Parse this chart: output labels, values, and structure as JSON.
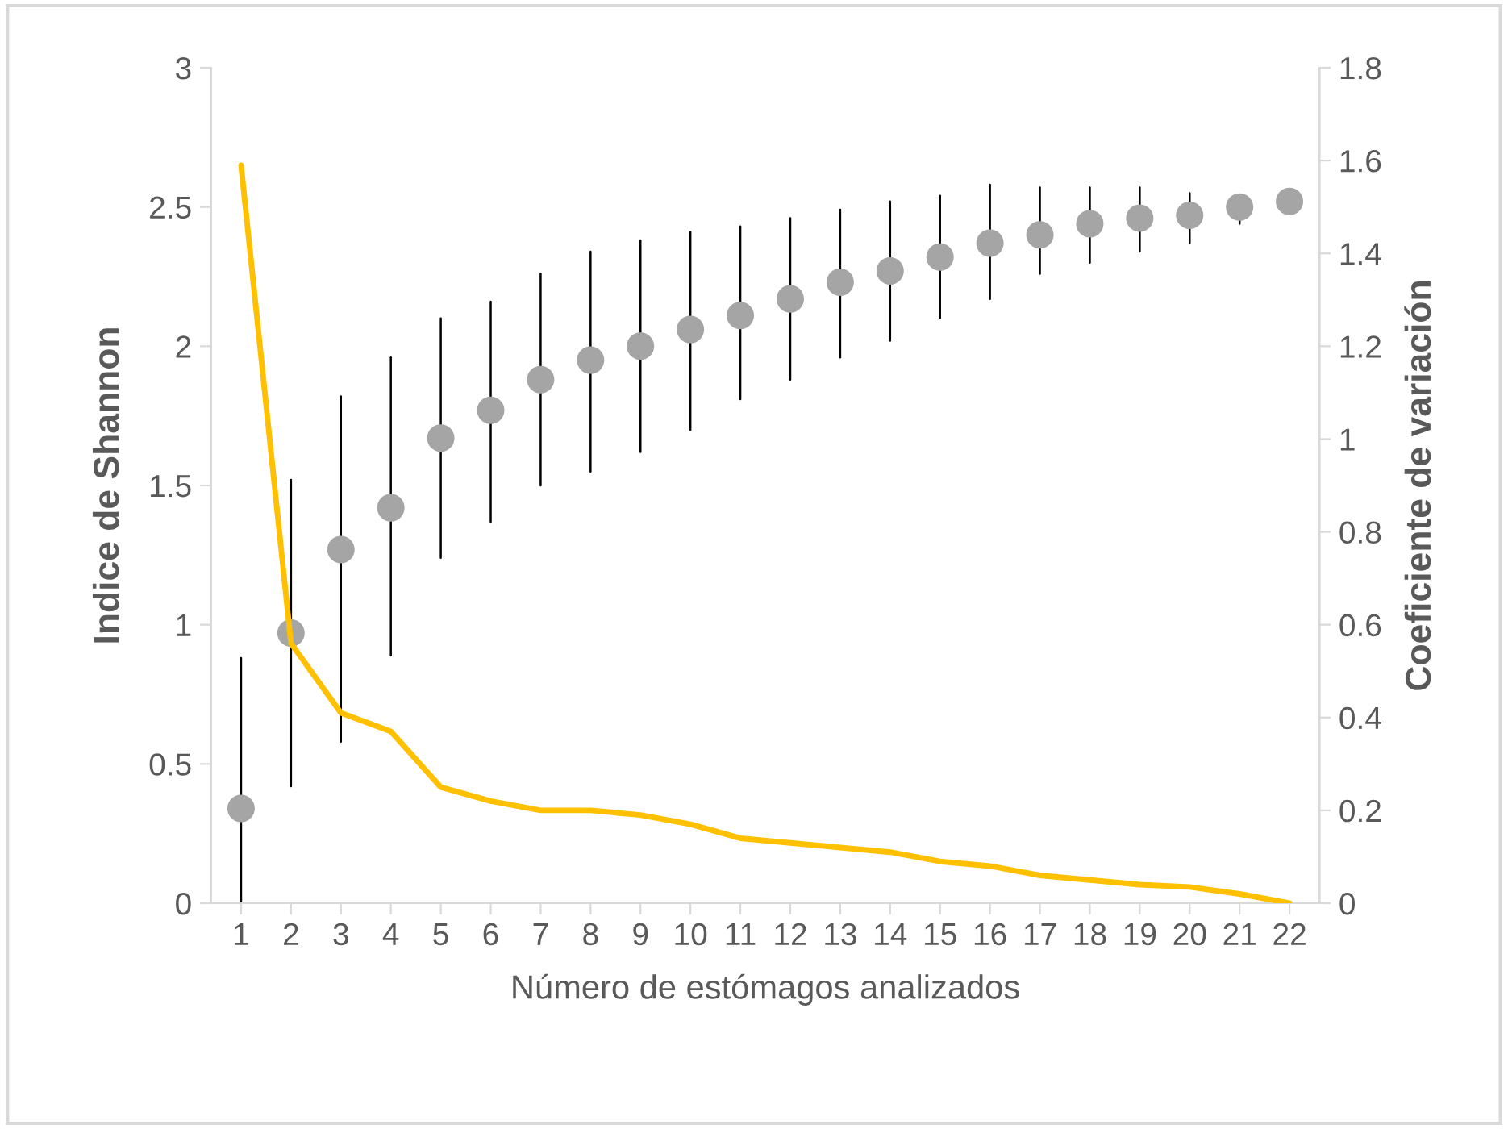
{
  "chart_data": {
    "type": "scatter",
    "xlabel": "Número de estómagos analizados",
    "ylabel": "Indice de Shannon",
    "y2label": "Coeficiente de variación",
    "categories": [
      "1",
      "2",
      "3",
      "4",
      "5",
      "6",
      "7",
      "8",
      "9",
      "10",
      "11",
      "12",
      "13",
      "14",
      "15",
      "16",
      "17",
      "18",
      "19",
      "20",
      "21",
      "22"
    ],
    "series": [
      {
        "color": "#a5a5a5",
        "marker": "circle",
        "values": [
          0.34,
          0.97,
          1.27,
          1.42,
          1.67,
          1.77,
          1.88,
          1.95,
          2.0,
          2.06,
          2.11,
          2.17,
          2.23,
          2.27,
          2.32,
          2.37,
          2.4,
          2.44,
          2.46,
          2.47,
          2.5,
          2.52
        ],
        "errors": [
          [
            0,
            0.88
          ],
          [
            0.42,
            1.52
          ],
          [
            0.58,
            1.82
          ],
          [
            0.89,
            1.96
          ],
          [
            1.24,
            2.1
          ],
          [
            1.37,
            2.16
          ],
          [
            1.5,
            2.26
          ],
          [
            1.55,
            2.34
          ],
          [
            1.62,
            2.38
          ],
          [
            1.7,
            2.41
          ],
          [
            1.81,
            2.43
          ],
          [
            1.88,
            2.46
          ],
          [
            1.96,
            2.49
          ],
          [
            2.02,
            2.52
          ],
          [
            2.1,
            2.54
          ],
          [
            2.17,
            2.58
          ],
          [
            2.26,
            2.57
          ],
          [
            2.3,
            2.57
          ],
          [
            2.34,
            2.57
          ],
          [
            2.37,
            2.55
          ],
          [
            2.44,
            2.54
          ],
          null
        ]
      },
      {
        "type": "line",
        "axis": "y2",
        "color": "#ffc000",
        "values": [
          1.59,
          0.56,
          0.41,
          0.37,
          0.25,
          0.22,
          0.2,
          0.2,
          0.19,
          0.17,
          0.14,
          0.13,
          0.12,
          0.11,
          0.09,
          0.08,
          0.06,
          0.05,
          0.04,
          0.035,
          0.02,
          0
        ]
      }
    ],
    "ylim": [
      0,
      3
    ],
    "yticks": [
      0,
      0.5,
      1,
      1.5,
      2,
      2.5,
      3
    ],
    "y2lim": [
      0,
      1.8
    ],
    "y2ticks": [
      0,
      0.2,
      0.4,
      0.6,
      0.8,
      1,
      1.2,
      1.4,
      1.6,
      1.8
    ],
    "grid": false,
    "legend": false
  }
}
